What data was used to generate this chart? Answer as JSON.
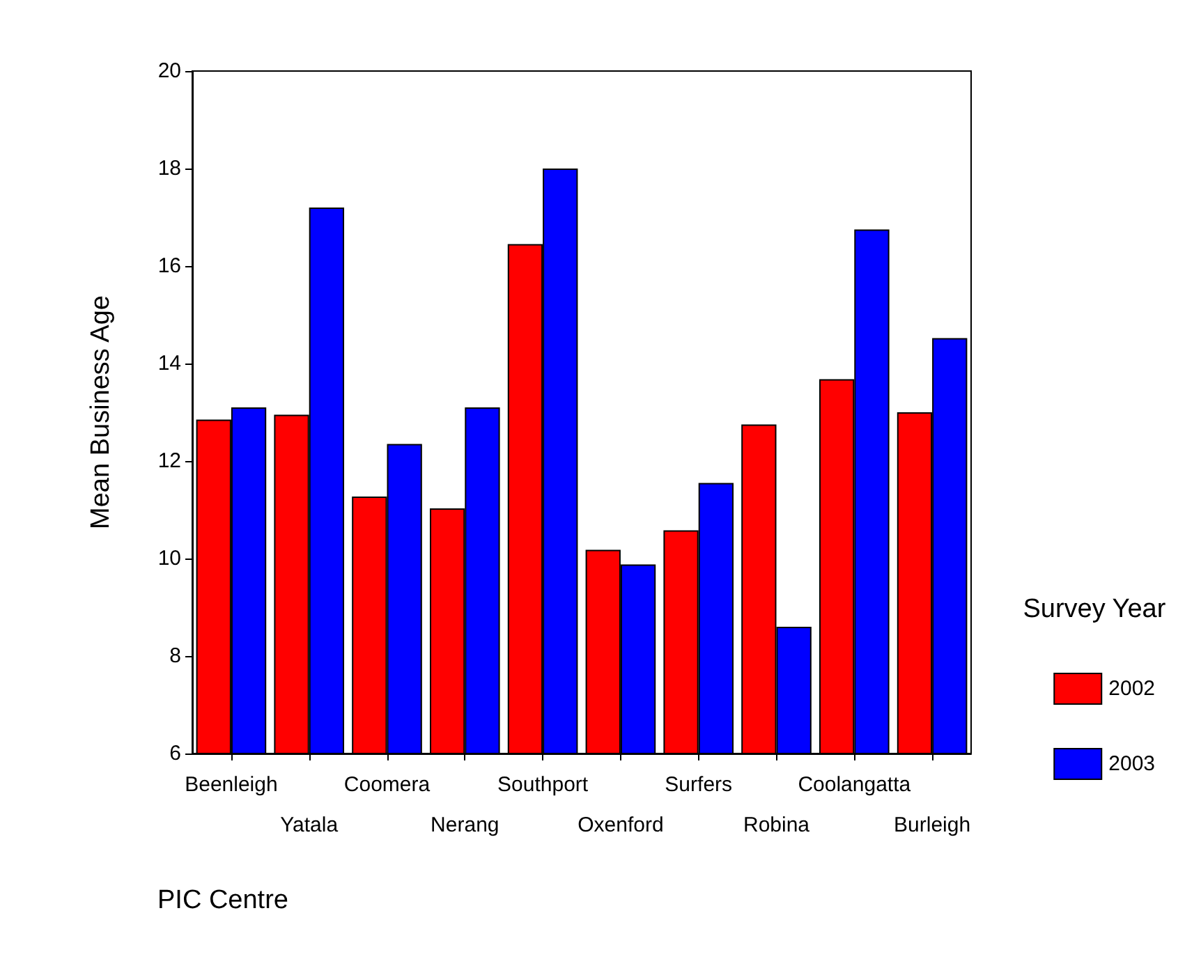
{
  "chart_data": {
    "type": "bar",
    "xlabel": "PIC Centre",
    "ylabel": "Mean Business Age",
    "legend_title": "Survey Year",
    "legend": "right",
    "categories": [
      "Beenleigh",
      "Yatala",
      "Coomera",
      "Nerang",
      "Southport",
      "Oxenford",
      "Surfers",
      "Robina",
      "Coolangatta",
      "Burleigh"
    ],
    "series": [
      {
        "name": "2002",
        "color": "#ff0000",
        "values": [
          12.85,
          12.95,
          11.27,
          11.03,
          16.45,
          10.18,
          10.58,
          12.75,
          13.68,
          13.0
        ]
      },
      {
        "name": "2003",
        "color": "#0000ff",
        "values": [
          13.1,
          17.2,
          12.35,
          13.1,
          18.0,
          9.88,
          11.55,
          8.6,
          16.75,
          14.52
        ]
      }
    ],
    "ylim": [
      6,
      20
    ],
    "yticks": [
      6,
      8,
      10,
      12,
      14,
      16,
      18,
      20
    ],
    "grid": false
  }
}
